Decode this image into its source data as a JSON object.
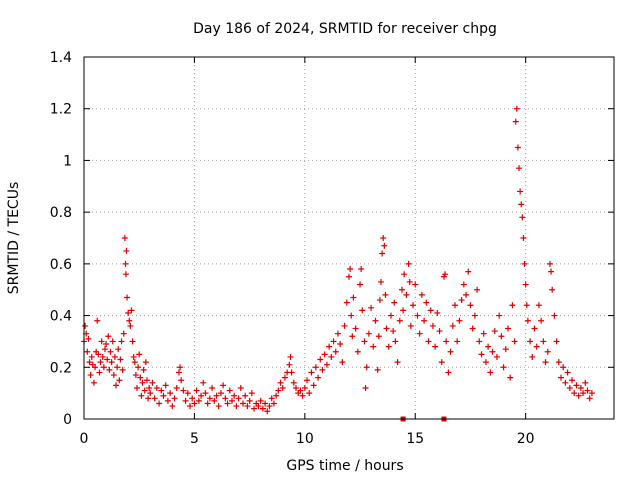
{
  "chart_data": {
    "type": "scatter",
    "title": "Day 186 of 2024, SRMTID for receiver chpg",
    "xlabel": "GPS time / hours",
    "ylabel": "SRMTID / TECUs",
    "xlim": [
      0,
      24
    ],
    "ylim": [
      0,
      1.4
    ],
    "grid": true,
    "marker": "+",
    "series_color": "#e00000",
    "x_ticks": [
      {
        "value": 0,
        "label": "0"
      },
      {
        "value": 5,
        "label": "5"
      },
      {
        "value": 10,
        "label": "10"
      },
      {
        "value": 15,
        "label": "15"
      },
      {
        "value": 20,
        "label": "20"
      }
    ],
    "y_ticks": [
      {
        "value": 0,
        "label": "0"
      },
      {
        "value": 0.2,
        "label": "0.2"
      },
      {
        "value": 0.4,
        "label": "0.4"
      },
      {
        "value": 0.6,
        "label": "0.6"
      },
      {
        "value": 0.8,
        "label": "0.8"
      },
      {
        "value": 1.0,
        "label": "1"
      },
      {
        "value": 1.2,
        "label": "1.2"
      },
      {
        "value": 1.4,
        "label": "1.4"
      }
    ],
    "series": [
      {
        "name": "SRMTID",
        "points": [
          [
            0.0,
            0.3
          ],
          [
            0.05,
            0.36
          ],
          [
            0.1,
            0.33
          ],
          [
            0.15,
            0.26
          ],
          [
            0.2,
            0.31
          ],
          [
            0.25,
            0.22
          ],
          [
            0.3,
            0.17
          ],
          [
            0.35,
            0.24
          ],
          [
            0.4,
            0.21
          ],
          [
            0.45,
            0.14
          ],
          [
            0.5,
            0.2
          ],
          [
            0.55,
            0.26
          ],
          [
            0.6,
            0.38
          ],
          [
            0.65,
            0.25
          ],
          [
            0.7,
            0.18
          ],
          [
            0.75,
            0.22
          ],
          [
            0.8,
            0.3
          ],
          [
            0.85,
            0.24
          ],
          [
            0.9,
            0.2
          ],
          [
            0.95,
            0.27
          ],
          [
            1.0,
            0.29
          ],
          [
            1.05,
            0.23
          ],
          [
            1.1,
            0.32
          ],
          [
            1.15,
            0.19
          ],
          [
            1.2,
            0.26
          ],
          [
            1.25,
            0.22
          ],
          [
            1.3,
            0.3
          ],
          [
            1.35,
            0.17
          ],
          [
            1.4,
            0.24
          ],
          [
            1.45,
            0.13
          ],
          [
            1.5,
            0.2
          ],
          [
            1.55,
            0.27
          ],
          [
            1.6,
            0.15
          ],
          [
            1.65,
            0.23
          ],
          [
            1.7,
            0.3
          ],
          [
            1.75,
            0.19
          ],
          [
            1.8,
            0.33
          ],
          [
            1.85,
            0.7
          ],
          [
            1.88,
            0.6
          ],
          [
            1.9,
            0.56
          ],
          [
            1.92,
            0.65
          ],
          [
            1.95,
            0.47
          ],
          [
            2.0,
            0.41
          ],
          [
            2.05,
            0.38
          ],
          [
            2.1,
            0.36
          ],
          [
            2.15,
            0.42
          ],
          [
            2.2,
            0.3
          ],
          [
            2.25,
            0.24
          ],
          [
            2.3,
            0.22
          ],
          [
            2.35,
            0.17
          ],
          [
            2.4,
            0.12
          ],
          [
            2.45,
            0.2
          ],
          [
            2.5,
            0.25
          ],
          [
            2.55,
            0.16
          ],
          [
            2.6,
            0.09
          ],
          [
            2.65,
            0.14
          ],
          [
            2.7,
            0.19
          ],
          [
            2.75,
            0.11
          ],
          [
            2.8,
            0.22
          ],
          [
            2.85,
            0.15
          ],
          [
            2.9,
            0.08
          ],
          [
            2.95,
            0.12
          ],
          [
            3.0,
            0.1
          ],
          [
            3.1,
            0.14
          ],
          [
            3.2,
            0.08
          ],
          [
            3.3,
            0.12
          ],
          [
            3.4,
            0.06
          ],
          [
            3.5,
            0.11
          ],
          [
            3.6,
            0.09
          ],
          [
            3.7,
            0.13
          ],
          [
            3.8,
            0.07
          ],
          [
            3.9,
            0.1
          ],
          [
            4.0,
            0.05
          ],
          [
            4.1,
            0.08
          ],
          [
            4.2,
            0.12
          ],
          [
            4.3,
            0.18
          ],
          [
            4.35,
            0.2
          ],
          [
            4.4,
            0.15
          ],
          [
            4.5,
            0.11
          ],
          [
            4.6,
            0.07
          ],
          [
            4.7,
            0.1
          ],
          [
            4.8,
            0.05
          ],
          [
            4.9,
            0.08
          ],
          [
            5.0,
            0.06
          ],
          [
            5.1,
            0.11
          ],
          [
            5.2,
            0.07
          ],
          [
            5.3,
            0.09
          ],
          [
            5.4,
            0.14
          ],
          [
            5.5,
            0.1
          ],
          [
            5.6,
            0.06
          ],
          [
            5.7,
            0.08
          ],
          [
            5.8,
            0.12
          ],
          [
            5.9,
            0.07
          ],
          [
            6.0,
            0.09
          ],
          [
            6.1,
            0.05
          ],
          [
            6.2,
            0.1
          ],
          [
            6.3,
            0.13
          ],
          [
            6.4,
            0.08
          ],
          [
            6.5,
            0.06
          ],
          [
            6.6,
            0.11
          ],
          [
            6.7,
            0.07
          ],
          [
            6.8,
            0.09
          ],
          [
            6.9,
            0.05
          ],
          [
            7.0,
            0.08
          ],
          [
            7.1,
            0.12
          ],
          [
            7.2,
            0.06
          ],
          [
            7.3,
            0.09
          ],
          [
            7.4,
            0.05
          ],
          [
            7.5,
            0.07
          ],
          [
            7.6,
            0.1
          ],
          [
            7.7,
            0.04
          ],
          [
            7.8,
            0.06
          ],
          [
            7.9,
            0.05
          ],
          [
            8.0,
            0.07
          ],
          [
            8.1,
            0.04
          ],
          [
            8.2,
            0.06
          ],
          [
            8.3,
            0.03
          ],
          [
            8.4,
            0.05
          ],
          [
            8.5,
            0.08
          ],
          [
            8.6,
            0.06
          ],
          [
            8.7,
            0.09
          ],
          [
            8.8,
            0.11
          ],
          [
            8.9,
            0.14
          ],
          [
            9.0,
            0.12
          ],
          [
            9.1,
            0.16
          ],
          [
            9.2,
            0.18
          ],
          [
            9.3,
            0.21
          ],
          [
            9.35,
            0.24
          ],
          [
            9.4,
            0.18
          ],
          [
            9.5,
            0.14
          ],
          [
            9.6,
            0.12
          ],
          [
            9.7,
            0.1
          ],
          [
            9.8,
            0.11
          ],
          [
            9.9,
            0.09
          ],
          [
            10.0,
            0.12
          ],
          [
            10.1,
            0.15
          ],
          [
            10.2,
            0.1
          ],
          [
            10.3,
            0.18
          ],
          [
            10.4,
            0.13
          ],
          [
            10.5,
            0.2
          ],
          [
            10.6,
            0.16
          ],
          [
            10.7,
            0.23
          ],
          [
            10.8,
            0.19
          ],
          [
            10.9,
            0.25
          ],
          [
            11.0,
            0.21
          ],
          [
            11.1,
            0.28
          ],
          [
            11.2,
            0.24
          ],
          [
            11.3,
            0.3
          ],
          [
            11.4,
            0.26
          ],
          [
            11.5,
            0.33
          ],
          [
            11.6,
            0.29
          ],
          [
            11.7,
            0.22
          ],
          [
            11.8,
            0.36
          ],
          [
            11.9,
            0.45
          ],
          [
            12.0,
            0.55
          ],
          [
            12.05,
            0.58
          ],
          [
            12.1,
            0.4
          ],
          [
            12.15,
            0.32
          ],
          [
            12.2,
            0.47
          ],
          [
            12.3,
            0.35
          ],
          [
            12.4,
            0.26
          ],
          [
            12.5,
            0.52
          ],
          [
            12.55,
            0.58
          ],
          [
            12.6,
            0.42
          ],
          [
            12.7,
            0.3
          ],
          [
            12.75,
            0.12
          ],
          [
            12.8,
            0.2
          ],
          [
            12.9,
            0.33
          ],
          [
            13.0,
            0.43
          ],
          [
            13.1,
            0.28
          ],
          [
            13.2,
            0.38
          ],
          [
            13.3,
            0.19
          ],
          [
            13.35,
            0.32
          ],
          [
            13.4,
            0.46
          ],
          [
            13.45,
            0.53
          ],
          [
            13.5,
            0.64
          ],
          [
            13.55,
            0.7
          ],
          [
            13.6,
            0.67
          ],
          [
            13.65,
            0.48
          ],
          [
            13.7,
            0.35
          ],
          [
            13.8,
            0.28
          ],
          [
            13.9,
            0.4
          ],
          [
            14.0,
            0.34
          ],
          [
            14.05,
            0.45
          ],
          [
            14.1,
            0.3
          ],
          [
            14.2,
            0.22
          ],
          [
            14.3,
            0.38
          ],
          [
            14.4,
            0.5
          ],
          [
            14.45,
            0.42
          ],
          [
            14.5,
            0.56
          ],
          [
            14.6,
            0.48
          ],
          [
            14.7,
            0.6
          ],
          [
            14.75,
            0.53
          ],
          [
            14.8,
            0.36
          ],
          [
            14.9,
            0.44
          ],
          [
            15.0,
            0.52
          ],
          [
            15.1,
            0.4
          ],
          [
            15.2,
            0.33
          ],
          [
            15.3,
            0.48
          ],
          [
            15.4,
            0.38
          ],
          [
            15.5,
            0.45
          ],
          [
            15.6,
            0.3
          ],
          [
            15.7,
            0.42
          ],
          [
            15.8,
            0.36
          ],
          [
            15.9,
            0.28
          ],
          [
            16.0,
            0.41
          ],
          [
            16.1,
            0.34
          ],
          [
            16.2,
            0.22
          ],
          [
            16.3,
            0.55
          ],
          [
            16.35,
            0.56
          ],
          [
            16.4,
            0.3
          ],
          [
            16.5,
            0.18
          ],
          [
            16.6,
            0.26
          ],
          [
            16.7,
            0.36
          ],
          [
            16.8,
            0.44
          ],
          [
            16.9,
            0.3
          ],
          [
            17.0,
            0.38
          ],
          [
            17.1,
            0.46
          ],
          [
            17.2,
            0.52
          ],
          [
            17.3,
            0.48
          ],
          [
            17.4,
            0.57
          ],
          [
            17.5,
            0.44
          ],
          [
            17.6,
            0.35
          ],
          [
            17.7,
            0.4
          ],
          [
            17.8,
            0.5
          ],
          [
            17.9,
            0.3
          ],
          [
            18.0,
            0.25
          ],
          [
            18.1,
            0.33
          ],
          [
            18.2,
            0.22
          ],
          [
            18.3,
            0.28
          ],
          [
            18.4,
            0.18
          ],
          [
            18.5,
            0.26
          ],
          [
            18.6,
            0.34
          ],
          [
            18.7,
            0.24
          ],
          [
            18.8,
            0.4
          ],
          [
            18.9,
            0.32
          ],
          [
            19.0,
            0.2
          ],
          [
            19.1,
            0.27
          ],
          [
            19.2,
            0.35
          ],
          [
            19.3,
            0.16
          ],
          [
            19.4,
            0.44
          ],
          [
            19.5,
            0.3
          ],
          [
            19.55,
            1.15
          ],
          [
            19.6,
            1.2
          ],
          [
            19.65,
            1.05
          ],
          [
            19.7,
            0.97
          ],
          [
            19.75,
            0.88
          ],
          [
            19.8,
            0.83
          ],
          [
            19.85,
            0.78
          ],
          [
            19.9,
            0.7
          ],
          [
            19.95,
            0.6
          ],
          [
            20.0,
            0.52
          ],
          [
            20.05,
            0.44
          ],
          [
            20.1,
            0.38
          ],
          [
            20.2,
            0.3
          ],
          [
            20.3,
            0.24
          ],
          [
            20.4,
            0.35
          ],
          [
            20.5,
            0.28
          ],
          [
            20.6,
            0.44
          ],
          [
            20.7,
            0.38
          ],
          [
            20.8,
            0.3
          ],
          [
            20.9,
            0.22
          ],
          [
            21.0,
            0.26
          ],
          [
            21.1,
            0.6
          ],
          [
            21.15,
            0.57
          ],
          [
            21.2,
            0.5
          ],
          [
            21.3,
            0.4
          ],
          [
            21.4,
            0.3
          ],
          [
            21.5,
            0.22
          ],
          [
            21.6,
            0.16
          ],
          [
            21.7,
            0.2
          ],
          [
            21.8,
            0.14
          ],
          [
            21.9,
            0.18
          ],
          [
            22.0,
            0.12
          ],
          [
            22.1,
            0.15
          ],
          [
            22.2,
            0.1
          ],
          [
            22.3,
            0.13
          ],
          [
            22.4,
            0.09
          ],
          [
            22.5,
            0.12
          ],
          [
            22.6,
            0.1
          ],
          [
            22.7,
            0.14
          ],
          [
            22.8,
            0.11
          ],
          [
            22.9,
            0.08
          ],
          [
            23.0,
            0.1
          ]
        ]
      }
    ],
    "outliers": [
      [
        14.45,
        0.0
      ],
      [
        16.3,
        0.0
      ]
    ]
  }
}
